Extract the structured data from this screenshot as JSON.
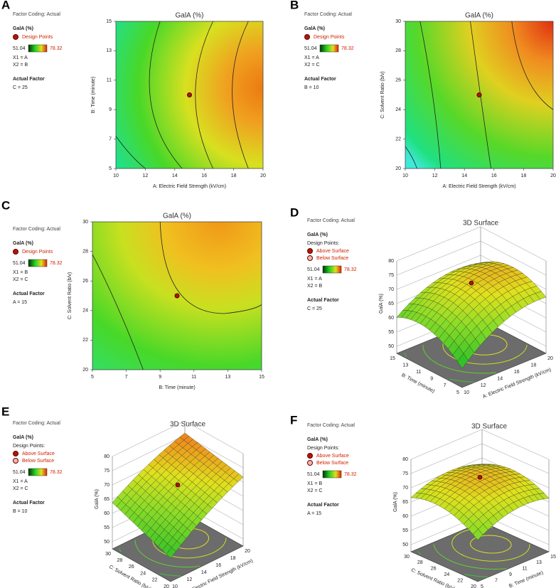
{
  "panels": [
    {
      "letter": "A",
      "coding": "Factor Coding: Actual",
      "legend_title": "GalA (%)",
      "design_points": [
        "Design Points"
      ],
      "range": [
        51.04,
        78.32
      ],
      "x1": "X1 = A",
      "x2": "X2 = B",
      "factor_title": "Actual Factor",
      "factor": "C = 25",
      "title": "GalA (%)",
      "x_label": "A: Electric Field Strength (kV/cm)",
      "y_label": "B: Time (minute)",
      "x_ticks": [
        10,
        12,
        14,
        16,
        18,
        20
      ],
      "y_ticks": [
        5,
        7,
        9,
        11,
        13,
        15
      ]
    },
    {
      "letter": "B",
      "coding": "Factor Coding: Actual",
      "legend_title": "GalA (%)",
      "design_points": [
        "Design Points"
      ],
      "range": [
        51.04,
        78.32
      ],
      "x1": "X1 = A",
      "x2": "X2 = C",
      "factor_title": "Actual Factor",
      "factor": "B = 10",
      "title": "GalA (%)",
      "x_label": "A: Electric Field Strength (kV/cm)",
      "y_label": "C: Solvent Ratio (b/v)",
      "x_ticks": [
        10,
        12,
        14,
        16,
        18,
        20
      ],
      "y_ticks": [
        20,
        22,
        24,
        26,
        28,
        30
      ]
    },
    {
      "letter": "C",
      "coding": "Factor Coding: Actual",
      "legend_title": "GalA (%)",
      "design_points": [
        "Design Points"
      ],
      "range": [
        51.04,
        78.32
      ],
      "x1": "X1 = B",
      "x2": "X2 = C",
      "factor_title": "Actual Factor",
      "factor": "A = 15",
      "title": "GalA (%)",
      "x_label": "B: Time (minute)",
      "y_label": "C: Solvent Ratio (b/v)",
      "x_ticks": [
        5,
        7,
        9,
        11,
        13,
        15
      ],
      "y_ticks": [
        20,
        22,
        24,
        26,
        28,
        30
      ]
    },
    {
      "letter": "D",
      "coding": "Factor Coding: Actual",
      "legend_title": "GalA (%)",
      "design_heading": "Design Points:",
      "design_points": [
        "Above Surface",
        "Below Surface"
      ],
      "range": [
        51.04,
        78.32
      ],
      "x1": "X1 = A",
      "x2": "X2 = B",
      "factor_title": "Actual Factor",
      "factor": "C = 25",
      "title": "3D Surface",
      "z_label": "GalA (%)",
      "z_ticks": [
        50,
        55,
        60,
        65,
        70,
        75,
        80
      ],
      "left_label": "B: Time (minute)",
      "left_ticks": [
        5,
        7,
        9,
        11,
        13,
        15
      ],
      "right_label": "A: Electric Field Strength (kV/cm)",
      "right_ticks": [
        10,
        12,
        14,
        16,
        18,
        20
      ]
    },
    {
      "letter": "E",
      "coding": "Factor Coding: Actual",
      "legend_title": "GalA (%)",
      "design_heading": "Design Points:",
      "design_points": [
        "Above Surface",
        "Below Surface"
      ],
      "range": [
        51.04,
        78.32
      ],
      "x1": "X1 = A",
      "x2": "X2 = C",
      "factor_title": "Actual Factor",
      "factor": "B = 10",
      "title": "3D Surface",
      "z_label": "GalA (%)",
      "z_ticks": [
        50,
        55,
        60,
        65,
        70,
        75,
        80
      ],
      "left_label": "C: Solvent Ratio (b/v)",
      "left_ticks": [
        20,
        22,
        24,
        26,
        28,
        30
      ],
      "right_label": "A: Electric Field Strength (kV/cm)",
      "right_ticks": [
        10,
        12,
        14,
        16,
        18,
        20
      ]
    },
    {
      "letter": "F",
      "coding": "Factor Coding: Actual",
      "legend_title": "GalA (%)",
      "design_heading": "Design Points:",
      "design_points": [
        "Above Surface",
        "Below Surface"
      ],
      "range": [
        51.04,
        78.32
      ],
      "x1": "X1 = B",
      "x2": "X2 = C",
      "factor_title": "Actual Factor",
      "factor": "A = 15",
      "title": "3D Surface",
      "z_label": "GalA (%)",
      "z_ticks": [
        50,
        55,
        60,
        65,
        70,
        75,
        80
      ],
      "left_label": "C: Solvent Ratio (b/v)",
      "left_ticks": [
        20,
        22,
        24,
        26,
        28,
        30
      ],
      "right_label": "B: Time (minute)",
      "right_ticks": [
        5,
        7,
        9,
        11,
        13,
        15
      ]
    }
  ]
}
